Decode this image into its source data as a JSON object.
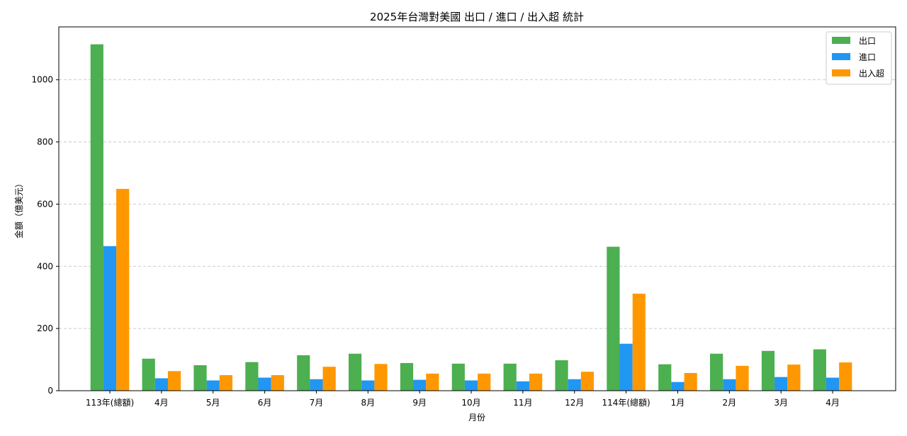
{
  "chart_data": {
    "type": "bar",
    "title": "2025年台灣對美國 出口 / 進口 / 出入超 統計",
    "xlabel": "月份",
    "ylabel": "金額（億美元）",
    "categories": [
      "113年(總額)",
      "4月",
      "5月",
      "6月",
      "7月",
      "8月",
      "9月",
      "10月",
      "11月",
      "12月",
      "114年(總額)",
      "1月",
      "2月",
      "3月",
      "4月"
    ],
    "series": [
      {
        "name": "出口",
        "color": "#4caf50",
        "values": [
          1114,
          103,
          82,
          92,
          114,
          119,
          89,
          87,
          87,
          98,
          463,
          85,
          119,
          128,
          133
        ]
      },
      {
        "name": "進口",
        "color": "#2196f3",
        "values": [
          465,
          40,
          33,
          42,
          37,
          33,
          35,
          33,
          30,
          37,
          151,
          28,
          37,
          44,
          42
        ]
      },
      {
        "name": "出入超",
        "color": "#ff9800",
        "values": [
          649,
          63,
          50,
          50,
          77,
          86,
          55,
          55,
          55,
          61,
          312,
          57,
          80,
          84,
          91
        ]
      }
    ],
    "ylim": [
      0,
      1170
    ],
    "yticks": [
      0,
      200,
      400,
      600,
      800,
      1000
    ],
    "grid": {
      "y": true,
      "style": "dashed"
    },
    "legend": {
      "position": "top-right"
    }
  }
}
